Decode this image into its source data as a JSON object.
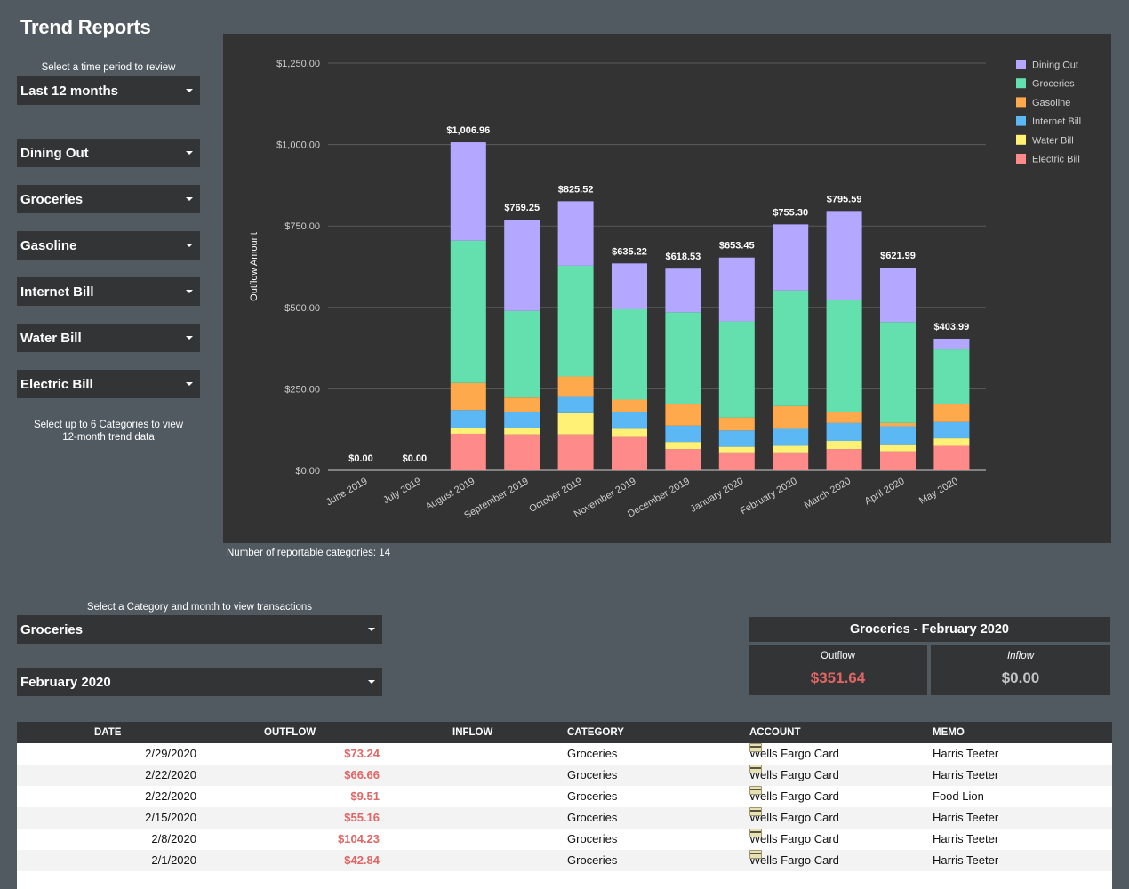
{
  "page_title": "Trend Reports",
  "period": {
    "label": "Select a time period to review",
    "value": "Last 12 months"
  },
  "category_selects": [
    "Dining Out",
    "Groceries",
    "Gasoline",
    "Internet Bill",
    "Water Bill",
    "Electric Bill"
  ],
  "category_hint": [
    "Select up to 6 Categories to view",
    "12-month trend data"
  ],
  "chart_note": "Number of reportable categories: 14",
  "tx_filter": {
    "label": "Select a Category and month to view transactions",
    "category": "Groceries",
    "month": "February 2020"
  },
  "summary": {
    "title": "Groceries - February 2020",
    "outflow_label": "Outflow",
    "outflow_value": "$351.64",
    "inflow_label": "Inflow",
    "inflow_value": "$0.00"
  },
  "table": {
    "headers": [
      "DATE",
      "OUTFLOW",
      "INFLOW",
      "CATEGORY",
      "ACCOUNT",
      "MEMO"
    ],
    "rows": [
      {
        "date": "2/29/2020",
        "outflow": "$73.24",
        "inflow": "",
        "category": "Groceries",
        "account": "Wells Fargo Card",
        "memo": "Harris Teeter"
      },
      {
        "date": "2/22/2020",
        "outflow": "$66.66",
        "inflow": "",
        "category": "Groceries",
        "account": "Wells Fargo Card",
        "memo": "Harris Teeter"
      },
      {
        "date": "2/22/2020",
        "outflow": "$9.51",
        "inflow": "",
        "category": "Groceries",
        "account": "Wells Fargo Card",
        "memo": "Food Lion"
      },
      {
        "date": "2/15/2020",
        "outflow": "$55.16",
        "inflow": "",
        "category": "Groceries",
        "account": "Wells Fargo Card",
        "memo": "Harris Teeter"
      },
      {
        "date": "2/8/2020",
        "outflow": "$104.23",
        "inflow": "",
        "category": "Groceries",
        "account": "Wells Fargo Card",
        "memo": "Harris Teeter"
      },
      {
        "date": "2/1/2020",
        "outflow": "$42.84",
        "inflow": "",
        "category": "Groceries",
        "account": "Wells Fargo Card",
        "memo": "Harris Teeter"
      }
    ]
  },
  "colors": {
    "background": "#525a61",
    "panel": "#333333",
    "outflow": "#e06666"
  },
  "chart_data": {
    "type": "bar",
    "stacked": true,
    "ylabel": "Outflow Amount",
    "xlabel": "",
    "title": "",
    "ylim": [
      0,
      1250
    ],
    "yticks": [
      0,
      250,
      500,
      750,
      1000,
      1250
    ],
    "ytick_labels": [
      "$0.00",
      "$250.00",
      "$500.00",
      "$750.00",
      "$1,000.00",
      "$1,250.00"
    ],
    "grid": true,
    "legend": "top-right",
    "categories": [
      "June 2019",
      "July 2019",
      "August 2019",
      "September 2019",
      "October 2019",
      "November 2019",
      "December 2019",
      "January 2020",
      "February 2020",
      "March 2020",
      "April 2020",
      "May 2020"
    ],
    "totals": [
      "$0.00",
      "$0.00",
      "$1,006.96",
      "$769.25",
      "$825.52",
      "$635.22",
      "$618.53",
      "$653.45",
      "$755.30",
      "$795.59",
      "$621.99",
      "$403.99"
    ],
    "series": [
      {
        "name": "Electric Bill",
        "color": "#ff8a8a",
        "values": [
          0,
          0,
          112,
          110,
          110,
          102,
          65,
          55,
          55,
          65,
          58,
          75
        ]
      },
      {
        "name": "Water Bill",
        "color": "#fff176",
        "values": [
          0,
          0,
          18,
          20,
          65,
          25,
          22,
          17,
          20,
          25,
          22,
          23
        ]
      },
      {
        "name": "Internet Bill",
        "color": "#5cb8f5",
        "values": [
          0,
          0,
          55,
          50,
          50,
          52,
          50,
          50,
          52,
          55,
          55,
          50
        ]
      },
      {
        "name": "Gasoline",
        "color": "#ffa94d",
        "values": [
          0,
          0,
          83,
          43,
          63,
          38,
          65,
          40,
          70,
          33,
          10,
          55
        ]
      },
      {
        "name": "Groceries",
        "color": "#63e0ad",
        "values": [
          0,
          0,
          437,
          266,
          340,
          277,
          283,
          295,
          355,
          345,
          310,
          168
        ]
      },
      {
        "name": "Dining Out",
        "color": "#b4a7ff",
        "values": [
          0,
          0,
          302,
          280,
          198,
          141,
          134,
          196,
          203,
          273,
          167,
          33
        ]
      }
    ]
  }
}
